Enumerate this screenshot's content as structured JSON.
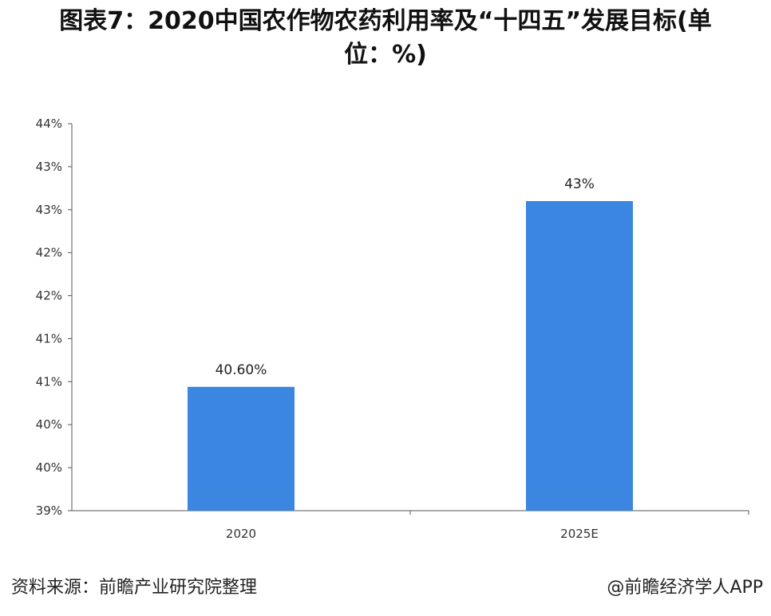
{
  "chart_data": {
    "type": "bar",
    "title_line1": "图表7：2020中国农作物农药利用率及“十四五”发展目标(单",
    "title_line2": "位：%)",
    "categories": [
      "2020",
      "2025E"
    ],
    "values": [
      40.6,
      43
    ],
    "data_labels": [
      "40.60%",
      "43%"
    ],
    "y_tick_labels": [
      "39%",
      "40%",
      "40%",
      "41%",
      "41%",
      "42%",
      "42%",
      "43%",
      "43%",
      "44%"
    ],
    "ylim": [
      39,
      44
    ],
    "bar_color": "#3B86E0",
    "grid": false
  },
  "footer": {
    "source": "资料来源：前瞻产业研究院整理",
    "brand": "@前瞻经济学人APP"
  }
}
